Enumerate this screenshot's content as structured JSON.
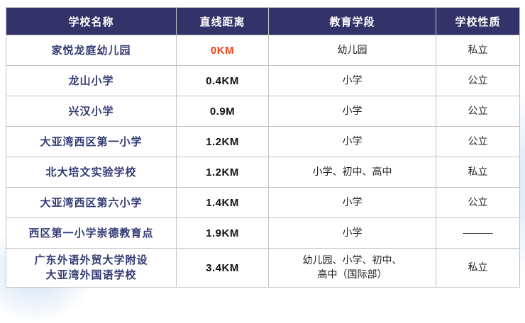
{
  "chart_data": {
    "type": "table",
    "columns": [
      "学校名称",
      "直线距离",
      "教育学段",
      "学校性质"
    ],
    "rows": [
      {
        "name": "家悦龙庭幼儿园",
        "distance": "0KM",
        "stage": "幼儿园",
        "nature": "私立",
        "highlight_distance": true
      },
      {
        "name": "龙山小学",
        "distance": "0.4KM",
        "stage": "小学",
        "nature": "公立",
        "highlight_distance": false
      },
      {
        "name": "兴汉小学",
        "distance": "0.9M",
        "stage": "小学",
        "nature": "公立",
        "highlight_distance": false
      },
      {
        "name": "大亚湾西区第一小学",
        "distance": "1.2KM",
        "stage": "小学",
        "nature": "公立",
        "highlight_distance": false
      },
      {
        "name": "北大培文实验学校",
        "distance": "1.2KM",
        "stage": "小学、初中、高中",
        "nature": "私立",
        "highlight_distance": false
      },
      {
        "name": "大亚湾西区第六小学",
        "distance": "1.4KM",
        "stage": "小学",
        "nature": "公立",
        "highlight_distance": false
      },
      {
        "name": "西区第一小学崇德教育点",
        "distance": "1.9KM",
        "stage": "小学",
        "nature": "———",
        "highlight_distance": false
      },
      {
        "name": "广东外语外贸大学附设\n大亚湾外国语学校",
        "distance": "3.4KM",
        "stage": "幼儿园、小学、初中、\n高中（国际部）",
        "nature": "私立",
        "highlight_distance": false
      }
    ]
  },
  "colors": {
    "header_background": "#343369",
    "header_text": "#ffffff",
    "school_name_text": "#333a73",
    "distance_text": "#111111",
    "distance_highlight": "#e8431f",
    "border": "#c3c3c6"
  }
}
